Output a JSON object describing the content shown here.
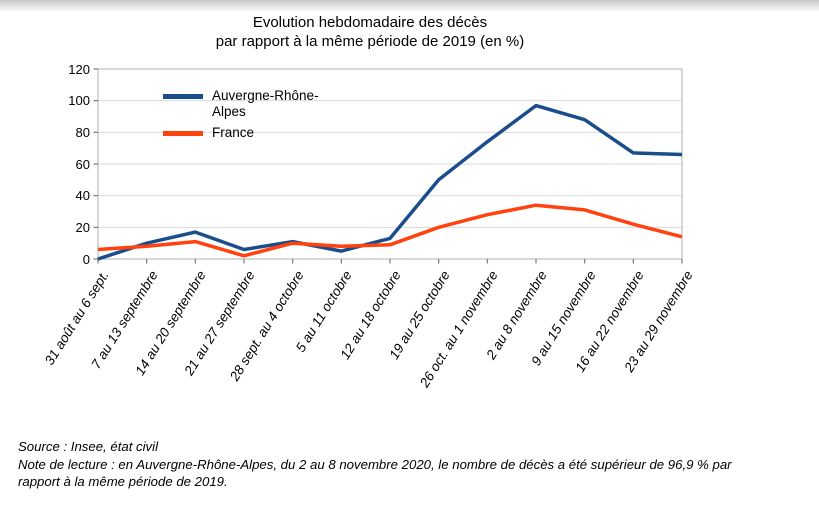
{
  "chart": {
    "accent_colors": {
      "region_blue": "#1a4d8c",
      "france_orange": "#ff420e"
    }
  },
  "chart_data": {
    "type": "line",
    "title": "Evolution hebdomadaire des décès par rapport à la même période de 2019 (en %)",
    "title_lines": [
      "Evolution hebdomadaire des décès",
      "par rapport à la même période de 2019 (en %)"
    ],
    "categories": [
      "31 août au 6 sept.",
      "7 au 13 septembre",
      "14 au 20 septembre",
      "21 au 27 septembre",
      "28 sept. au 4 octobre",
      "5 au 11 octobre",
      "12 au 18 octobre",
      "19 au 25 octobre",
      "26 oct. au 1 novembre",
      "2 au 8 novembre",
      "9 au 15 novembre",
      "16 au 22 novembre",
      "23 au 29 novembre"
    ],
    "series": [
      {
        "name": "Auvergne-Rhône-Alpes",
        "color": "#1a4d8c",
        "values": [
          0,
          10,
          17,
          6,
          11,
          5,
          13,
          50,
          74,
          96.9,
          88,
          67,
          66
        ]
      },
      {
        "name": "France",
        "color": "#ff420e",
        "values": [
          6,
          8,
          11,
          2,
          10,
          8,
          9,
          20,
          28,
          34,
          31,
          22,
          14
        ]
      }
    ],
    "ylim": [
      0,
      120
    ],
    "yticks": [
      0,
      20,
      40,
      60,
      80,
      100,
      120
    ],
    "grid": true,
    "legend_position": "top-left-inside",
    "xlabel": "",
    "ylabel": ""
  },
  "footer": {
    "source": "Source : Insee, état civil",
    "note": "Note de lecture : en Auvergne-Rhône-Alpes, du 2 au 8 novembre 2020, le nombre de décès a été supérieur de 96,9 % par rapport à la même période de 2019."
  }
}
